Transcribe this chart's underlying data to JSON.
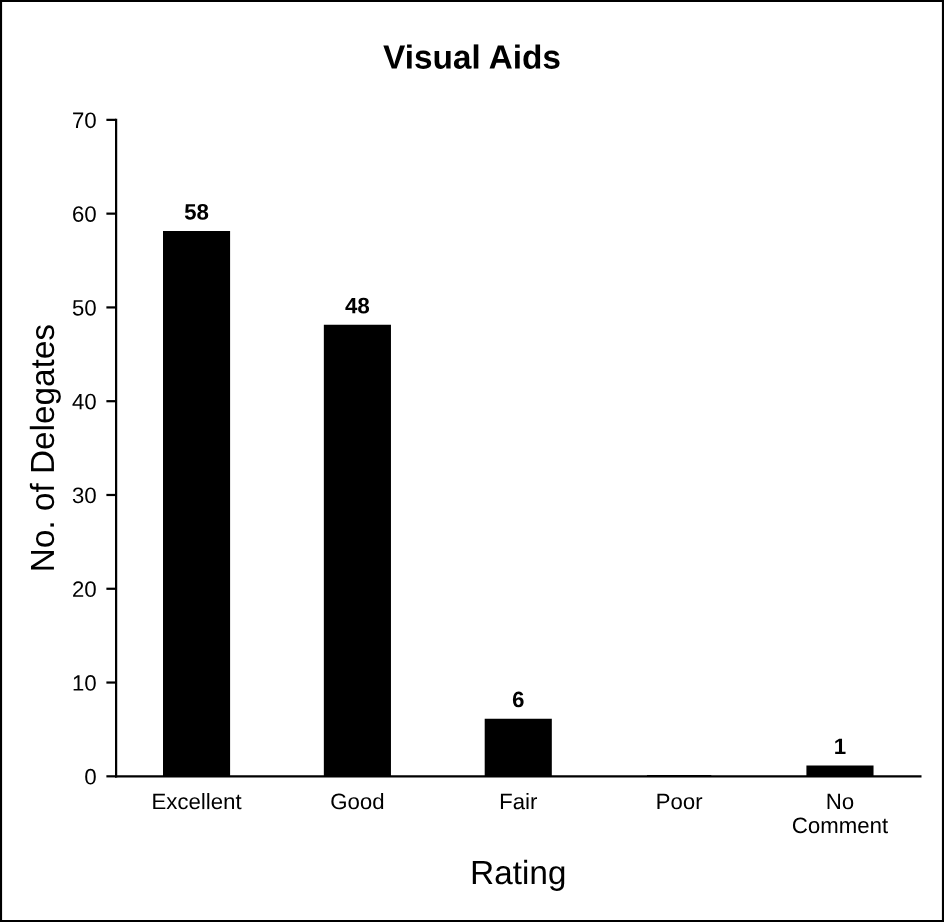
{
  "chart_data": {
    "type": "bar",
    "title": "Visual Aids",
    "xlabel": "Rating",
    "ylabel": "No. of Delegates",
    "categories": [
      "Excellent",
      "Good",
      "Fair",
      "Poor",
      "No\nComment"
    ],
    "values": [
      58,
      48,
      6,
      0,
      1
    ],
    "value_labels": [
      "58",
      "48",
      "6",
      null,
      "1"
    ],
    "color": "#000000",
    "ylim": [
      0,
      70
    ],
    "yticks": [
      0,
      10,
      20,
      30,
      40,
      50,
      60,
      70
    ],
    "grid": false,
    "legend": false
  }
}
